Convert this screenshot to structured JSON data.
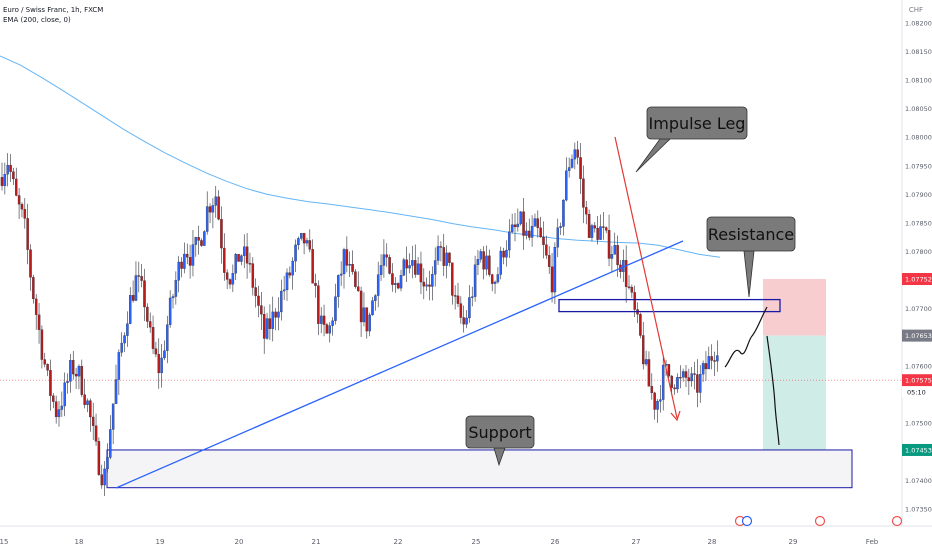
{
  "header": {
    "symbol_line": "Euro / Swiss Franc, 1h, FXCM",
    "indicator_line": "EMA (200, close, 0)"
  },
  "currency": "CHF",
  "colors": {
    "up": "#2962ff",
    "down": "#b71c1c",
    "ema": "#64b5f6",
    "trend": "#2962ff",
    "box": "#1a1aa6",
    "arrow": "#e53935",
    "stop_zone": "#f8cdd0",
    "target_zone": "#cfece7",
    "price_current": "#f23645",
    "price_target": "#089981",
    "price_entry": "#787b86",
    "callout": "#777777"
  },
  "chart_data": {
    "type": "candlestick",
    "title": "Euro / Swiss Franc, 1h, FXCM",
    "ylim": [
      1.0732,
      1.0824
    ],
    "y_ticks": [
      "1.08200",
      "1.08150",
      "1.08100",
      "1.08050",
      "1.08000",
      "1.07950",
      "1.07900",
      "1.07850",
      "1.07800",
      "1.07700",
      "1.07653",
      "1.07600",
      "1.07500",
      "1.07400",
      "1.07350"
    ],
    "x_ticks": [
      "15",
      "18",
      "19",
      "20",
      "21",
      "22",
      "25",
      "26",
      "27",
      "28",
      "29",
      "Feb"
    ],
    "price_labels": {
      "resistance": "1.07752",
      "entry": "1.07653",
      "current": "1.07575",
      "countdown": "05:10",
      "target": "1.07453"
    },
    "ema_200": [
      1.08142,
      1.08126,
      1.08105,
      1.08083,
      1.0806,
      1.08037,
      1.08014,
      1.07993,
      1.07973,
      1.07955,
      1.07938,
      1.07923,
      1.0791,
      1.079,
      1.07893,
      1.07887,
      1.07883,
      1.07878,
      1.07873,
      1.07868,
      1.07862,
      1.07856,
      1.07849,
      1.07843,
      1.07838,
      1.07832,
      1.07828,
      1.07823,
      1.0782,
      1.07818,
      1.07816,
      1.07815,
      1.07811,
      1.07803,
      1.07795,
      1.0779
    ],
    "price_path": [
      1.0793,
      1.0796,
      1.0789,
      1.0785,
      1.0774,
      1.0765,
      1.0757,
      1.0752,
      1.0755,
      1.076,
      1.0758,
      1.0753,
      1.0745,
      1.074,
      1.0752,
      1.0762,
      1.077,
      1.0775,
      1.0772,
      1.0763,
      1.0759,
      1.0768,
      1.0775,
      1.0781,
      1.0779,
      1.0782,
      1.0788,
      1.079,
      1.0778,
      1.0775,
      1.078,
      1.0778,
      1.0772,
      1.0765,
      1.0768,
      1.0772,
      1.0775,
      1.078,
      1.0782,
      1.0777,
      1.0767,
      1.0765,
      1.0772,
      1.0779,
      1.0775,
      1.077,
      1.0767,
      1.0775,
      1.0779,
      1.0773,
      1.0776,
      1.078,
      1.0778,
      1.0775,
      1.0775,
      1.078,
      1.0778,
      1.077,
      1.0767,
      1.0773,
      1.078,
      1.0777,
      1.0775,
      1.0781,
      1.0783,
      1.0785,
      1.0782,
      1.0784,
      1.078,
      1.0775,
      1.0785,
      1.0795,
      1.0799,
      1.0787,
      1.0783,
      1.0784,
      1.0781,
      1.078,
      1.0777,
      1.0771,
      1.0765,
      1.0757,
      1.0753,
      1.0759,
      1.0758,
      1.0757,
      1.0758,
      1.0756,
      1.0759
    ],
    "annotations": [
      "Impulse Leg",
      "Resistance",
      "Support"
    ]
  }
}
